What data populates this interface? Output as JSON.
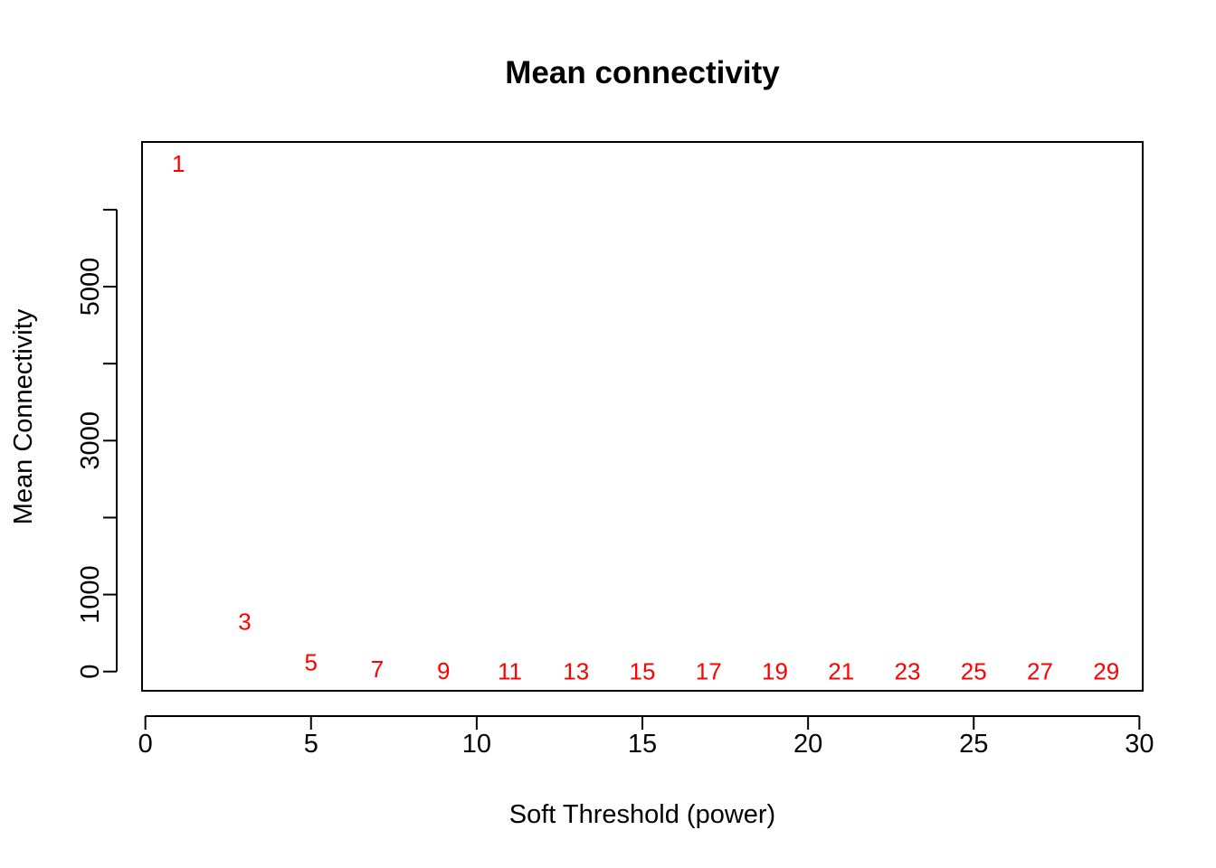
{
  "chart_data": {
    "type": "scatter",
    "title": "Mean connectivity",
    "xlabel": "Soft Threshold (power)",
    "ylabel": "Mean Connectivity",
    "xlim": [
      -0.1,
      30.1
    ],
    "ylim": [
      -250,
      6880
    ],
    "x_ticks": [
      0,
      5,
      10,
      15,
      20,
      25,
      30
    ],
    "y_ticks": [
      0,
      1000,
      2000,
      3000,
      4000,
      5000,
      6000
    ],
    "y_tick_labels": [
      {
        "value": 0,
        "label": "0"
      },
      {
        "value": 1000,
        "label": "1000"
      },
      {
        "value": 3000,
        "label": "3000"
      },
      {
        "value": 5000,
        "label": "5000"
      }
    ],
    "marker": "text-label",
    "marker_color": "#ff0000",
    "grid": false,
    "points": [
      {
        "x": 1,
        "y": 6600,
        "label": "1"
      },
      {
        "x": 3,
        "y": 650,
        "label": "3"
      },
      {
        "x": 5,
        "y": 120,
        "label": "5"
      },
      {
        "x": 7,
        "y": 30,
        "label": "7"
      },
      {
        "x": 9,
        "y": 8,
        "label": "9"
      },
      {
        "x": 11,
        "y": 3,
        "label": "11"
      },
      {
        "x": 13,
        "y": 1,
        "label": "13"
      },
      {
        "x": 15,
        "y": 0,
        "label": "15"
      },
      {
        "x": 17,
        "y": 0,
        "label": "17"
      },
      {
        "x": 19,
        "y": 0,
        "label": "19"
      },
      {
        "x": 21,
        "y": 0,
        "label": "21"
      },
      {
        "x": 23,
        "y": 0,
        "label": "23"
      },
      {
        "x": 25,
        "y": 0,
        "label": "25"
      },
      {
        "x": 27,
        "y": 0,
        "label": "27"
      },
      {
        "x": 29,
        "y": 0,
        "label": "29"
      }
    ]
  }
}
